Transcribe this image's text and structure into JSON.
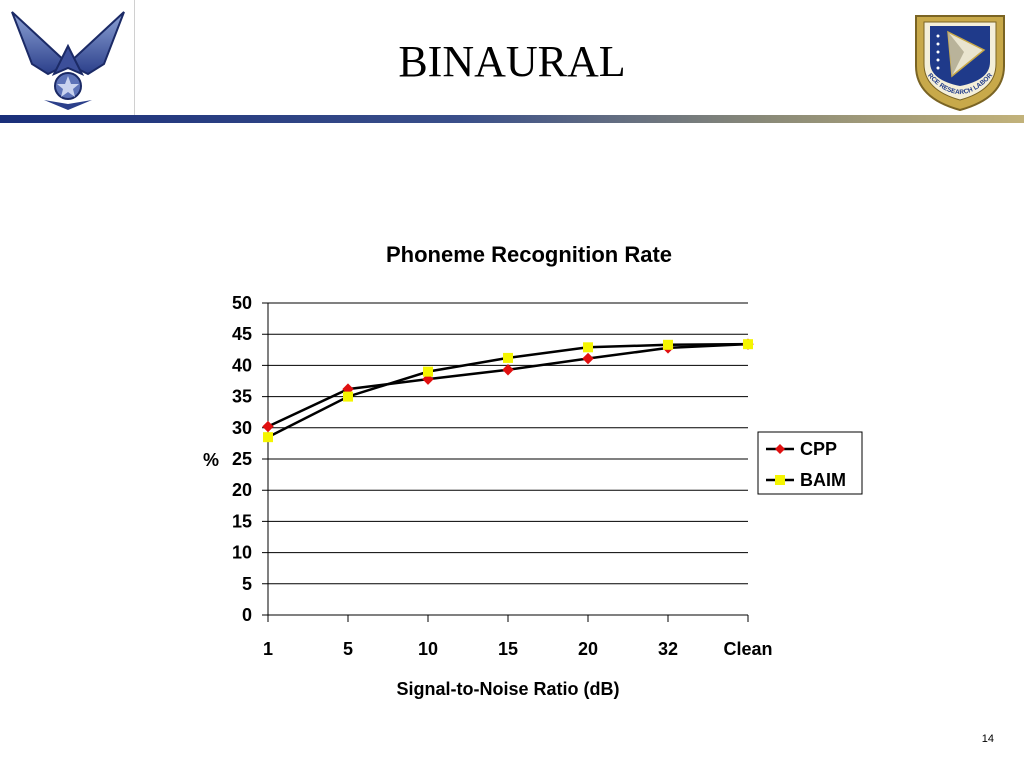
{
  "slide": {
    "title": "BINAURAL",
    "page_number": "14",
    "accent_colors": [
      "#1a2f7a",
      "#b5a36a"
    ]
  },
  "logos": {
    "left": "air-force-wings-logo",
    "right": "air-force-research-laboratory-shield",
    "right_text": "AIR FORCE RESEARCH LABORATORY"
  },
  "chart_data": {
    "type": "line",
    "title": "Phoneme Recognition Rate",
    "xlabel": "Signal-to-Noise Ratio (dB)",
    "ylabel": "%",
    "categories": [
      "1",
      "5",
      "10",
      "15",
      "20",
      "32",
      "Clean"
    ],
    "ylim": [
      0,
      50
    ],
    "yticks": [
      "0",
      "5",
      "10",
      "15",
      "20",
      "25",
      "30",
      "35",
      "40",
      "45",
      "50"
    ],
    "grid": true,
    "legend_position": "right",
    "series": [
      {
        "name": "CPP",
        "values": [
          30.2,
          36.2,
          37.8,
          39.3,
          41.1,
          42.8,
          43.4
        ],
        "color": "#e01010",
        "marker": "diamond"
      },
      {
        "name": "BAIM",
        "values": [
          28.5,
          35.0,
          39.0,
          41.2,
          42.9,
          43.3,
          43.4
        ],
        "color": "#f5f500",
        "marker": "square"
      }
    ]
  }
}
